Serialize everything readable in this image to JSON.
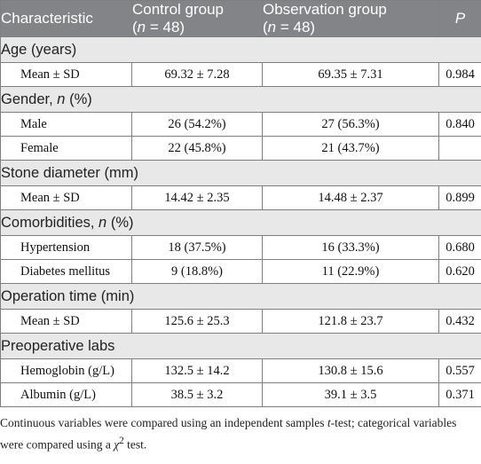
{
  "header": {
    "characteristic": "Characteristic",
    "control": "Control group",
    "control_n_prefix": "(",
    "control_n_var": "n",
    "control_n_rest": " = 48)",
    "observation": "Observation group",
    "observation_n_prefix": "(",
    "observation_n_var": "n",
    "observation_n_rest": " = 48)",
    "p": "P"
  },
  "sections": {
    "age": {
      "title": "Age (years)"
    },
    "gender": {
      "title_pre": "Gender, ",
      "title_var": "n",
      "title_post": " (%)"
    },
    "stone": {
      "title": "Stone diameter (mm)"
    },
    "comorb": {
      "title_pre": "Comorbidities, ",
      "title_var": "n",
      "title_post": " (%)"
    },
    "optime": {
      "title": "Operation time (min)"
    },
    "labs": {
      "title": "Preoperative labs"
    }
  },
  "rows": {
    "age_mean": {
      "label": "Mean ± SD",
      "control": "69.32 ± 7.28",
      "observation": "69.35 ± 7.31",
      "p": "0.984"
    },
    "male": {
      "label": "Male",
      "control": "26 (54.2%)",
      "observation": "27 (56.3%)",
      "p": "0.840"
    },
    "female": {
      "label": "Female",
      "control": "22 (45.8%)",
      "observation": "21 (43.7%)",
      "p": ""
    },
    "stone_mean": {
      "label": "Mean ± SD",
      "control": "14.42 ± 2.35",
      "observation": "14.48 ± 2.37",
      "p": "0.899"
    },
    "hypertension": {
      "label": "Hypertension",
      "control": "18 (37.5%)",
      "observation": "16 (33.3%)",
      "p": "0.680"
    },
    "diabetes": {
      "label": "Diabetes mellitus",
      "control": "9 (18.8%)",
      "observation": "11 (22.9%)",
      "p": "0.620"
    },
    "optime_mean": {
      "label": "Mean ± SD",
      "control": "125.6 ± 25.3",
      "observation": "121.8 ± 23.7",
      "p": "0.432"
    },
    "hemoglobin": {
      "label": "Hemoglobin (g/L)",
      "control": "132.5 ± 14.2",
      "observation": "130.8 ± 15.6",
      "p": "0.557"
    },
    "albumin": {
      "label": "Albumin (g/L)",
      "control": "38.5 ± 3.2",
      "observation": "39.1 ± 3.5",
      "p": "0.371"
    }
  },
  "footnote": {
    "part1": "Continuous variables were compared using an independent samples ",
    "t": "t",
    "part2": "-test; categorical variables were compared using a ",
    "chi": "χ",
    "sup": "2",
    "part3": " test."
  }
}
